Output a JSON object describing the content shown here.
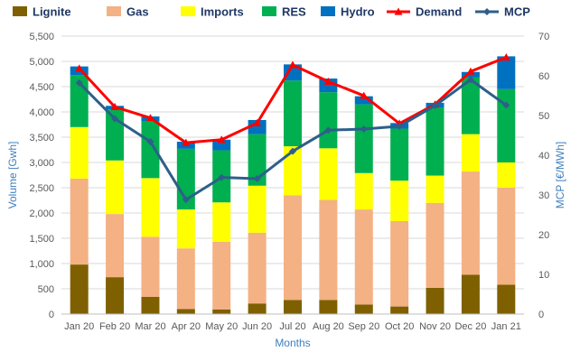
{
  "chart_data": {
    "type": "bar",
    "categories": [
      "Jan 20",
      "Feb 20",
      "Mar 20",
      "Apr 20",
      "May 20",
      "Jun 20",
      "Jul 20",
      "Aug 20",
      "Sep 20",
      "Oct 20",
      "Nov 20",
      "Dec 20",
      "Jan 21"
    ],
    "stack_series": [
      {
        "name": "Lignite",
        "color": "#7f6000",
        "values": [
          980,
          730,
          340,
          100,
          90,
          210,
          280,
          280,
          190,
          150,
          520,
          780,
          580
        ]
      },
      {
        "name": "Gas",
        "color": "#f4b183",
        "values": [
          1700,
          1250,
          1190,
          1200,
          1340,
          1400,
          2070,
          1980,
          1880,
          1690,
          1680,
          2040,
          1920
        ]
      },
      {
        "name": "Imports",
        "color": "#ffff00",
        "values": [
          1020,
          1060,
          1160,
          770,
          780,
          930,
          970,
          1020,
          720,
          800,
          540,
          740,
          500
        ]
      },
      {
        "name": "RES",
        "color": "#00b050",
        "values": [
          1030,
          1010,
          1120,
          1200,
          1030,
          1020,
          1300,
          1110,
          1360,
          1030,
          1350,
          1120,
          1450
        ]
      },
      {
        "name": "Hydro",
        "color": "#0070c0",
        "values": [
          170,
          70,
          100,
          140,
          210,
          280,
          320,
          270,
          160,
          110,
          90,
          110,
          650
        ]
      }
    ],
    "line_series": [
      {
        "name": "Demand",
        "color": "#ff0000",
        "marker": "triangle",
        "axis": "left",
        "values": [
          4860,
          4100,
          3880,
          3390,
          3450,
          3780,
          4930,
          4600,
          4320,
          3770,
          4150,
          4800,
          5080
        ]
      },
      {
        "name": "MCP",
        "color": "#2e5f8a",
        "marker": "diamond",
        "axis": "right",
        "values": [
          58.2,
          49.2,
          43.4,
          28.8,
          34.4,
          34.1,
          41,
          46.3,
          46.6,
          47.3,
          52.5,
          59,
          52.6
        ]
      }
    ],
    "left_axis": {
      "label": "Volume [Gwh]",
      "min": 0,
      "max": 5500,
      "step": 500,
      "tick_labels": [
        "0",
        "500",
        "1,000",
        "1,500",
        "2,000",
        "2,500",
        "3,000",
        "3,500",
        "4,000",
        "4,500",
        "5,000",
        "5,500"
      ]
    },
    "right_axis": {
      "label": "MCP [€/MWh]",
      "min": 0,
      "max": 70,
      "step": 10,
      "tick_labels": [
        "0",
        "10",
        "20",
        "30",
        "40",
        "50",
        "60",
        "70"
      ]
    },
    "xlabel": "Months",
    "legend": {
      "position": "top",
      "items": [
        "Lignite",
        "Gas",
        "Imports",
        "RES",
        "Hydro",
        "Demand",
        "MCP"
      ]
    },
    "grid": "horizontal"
  }
}
